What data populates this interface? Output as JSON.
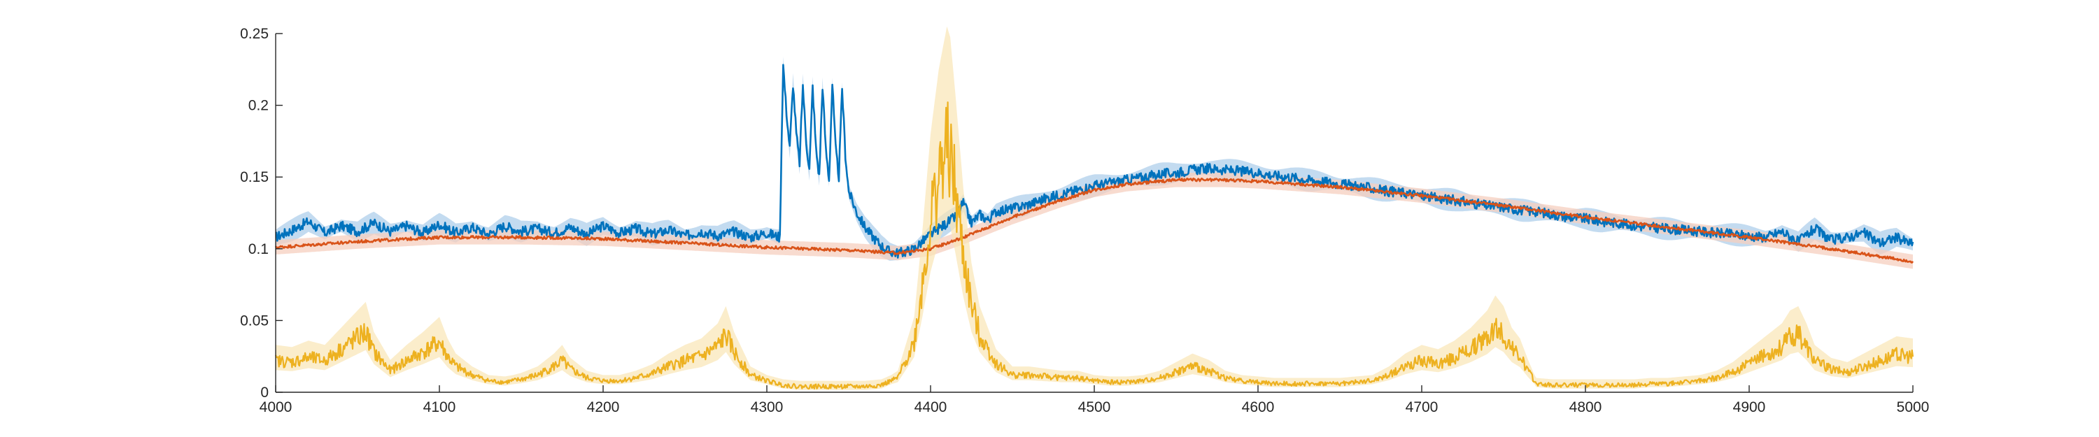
{
  "chart_data": {
    "type": "line",
    "title": "",
    "xlabel": "",
    "ylabel": "",
    "xlim": [
      4000,
      5000
    ],
    "ylim": [
      0,
      0.25
    ],
    "xticks": [
      "4000",
      "4100",
      "4200",
      "4300",
      "4400",
      "4500",
      "4600",
      "4700",
      "4800",
      "4900",
      "5000"
    ],
    "yticks": [
      "0",
      "0.05",
      "0.1",
      "0.15",
      "0.2",
      "0.25"
    ],
    "grid": false,
    "legend": "none",
    "series": [
      {
        "color": "#0072BD",
        "band_color": "#a9cce9",
        "x": [
          4000,
          4010,
          4020,
          4030,
          4040,
          4050,
          4060,
          4070,
          4080,
          4090,
          4100,
          4110,
          4120,
          4130,
          4140,
          4150,
          4160,
          4170,
          4180,
          4190,
          4200,
          4210,
          4220,
          4230,
          4240,
          4250,
          4260,
          4270,
          4280,
          4290,
          4300,
          4308,
          4309,
          4310,
          4312,
          4314,
          4316,
          4318,
          4320,
          4322,
          4324,
          4326,
          4328,
          4330,
          4332,
          4334,
          4336,
          4338,
          4340,
          4342,
          4344,
          4346,
          4348,
          4350,
          4355,
          4360,
          4365,
          4370,
          4375,
          4380,
          4385,
          4390,
          4395,
          4400,
          4405,
          4410,
          4415,
          4420,
          4425,
          4430,
          4435,
          4440,
          4450,
          4460,
          4470,
          4480,
          4490,
          4500,
          4510,
          4520,
          4530,
          4540,
          4550,
          4560,
          4570,
          4580,
          4590,
          4600,
          4610,
          4620,
          4630,
          4640,
          4650,
          4660,
          4670,
          4680,
          4690,
          4700,
          4710,
          4720,
          4730,
          4740,
          4750,
          4760,
          4770,
          4780,
          4790,
          4800,
          4810,
          4820,
          4830,
          4840,
          4850,
          4860,
          4870,
          4880,
          4890,
          4900,
          4910,
          4920,
          4930,
          4940,
          4950,
          4960,
          4970,
          4980,
          4990,
          5000
        ],
        "y": [
          0.108,
          0.113,
          0.119,
          0.111,
          0.116,
          0.112,
          0.118,
          0.112,
          0.116,
          0.111,
          0.117,
          0.111,
          0.115,
          0.11,
          0.116,
          0.112,
          0.114,
          0.111,
          0.115,
          0.11,
          0.116,
          0.111,
          0.114,
          0.11,
          0.113,
          0.109,
          0.112,
          0.109,
          0.112,
          0.108,
          0.111,
          0.108,
          0.175,
          0.228,
          0.195,
          0.17,
          0.215,
          0.18,
          0.16,
          0.214,
          0.175,
          0.155,
          0.213,
          0.17,
          0.15,
          0.214,
          0.17,
          0.148,
          0.215,
          0.17,
          0.15,
          0.212,
          0.165,
          0.14,
          0.125,
          0.115,
          0.108,
          0.102,
          0.098,
          0.097,
          0.098,
          0.1,
          0.105,
          0.11,
          0.114,
          0.118,
          0.122,
          0.132,
          0.118,
          0.124,
          0.12,
          0.126,
          0.128,
          0.131,
          0.135,
          0.138,
          0.141,
          0.144,
          0.146,
          0.148,
          0.15,
          0.152,
          0.153,
          0.155,
          0.156,
          0.155,
          0.154,
          0.153,
          0.151,
          0.15,
          0.148,
          0.147,
          0.145,
          0.144,
          0.142,
          0.14,
          0.139,
          0.137,
          0.135,
          0.134,
          0.132,
          0.13,
          0.129,
          0.127,
          0.126,
          0.124,
          0.122,
          0.121,
          0.119,
          0.118,
          0.116,
          0.115,
          0.114,
          0.113,
          0.112,
          0.111,
          0.11,
          0.109,
          0.108,
          0.112,
          0.105,
          0.114,
          0.106,
          0.108,
          0.111,
          0.104,
          0.108,
          0.103
        ]
      },
      {
        "color": "#D95319",
        "band_color": "#f5cfbf",
        "x": [
          4000,
          4050,
          4100,
          4150,
          4200,
          4250,
          4300,
          4350,
          4380,
          4400,
          4420,
          4450,
          4480,
          4500,
          4520,
          4550,
          4580,
          4600,
          4650,
          4700,
          4750,
          4800,
          4850,
          4900,
          4950,
          5000
        ],
        "y": [
          0.101,
          0.105,
          0.108,
          0.108,
          0.107,
          0.104,
          0.101,
          0.099,
          0.097,
          0.1,
          0.108,
          0.122,
          0.134,
          0.141,
          0.145,
          0.148,
          0.148,
          0.147,
          0.143,
          0.137,
          0.13,
          0.122,
          0.115,
          0.108,
          0.1,
          0.091
        ]
      },
      {
        "color": "#EDB120",
        "band_color": "#f9e6b5",
        "x": [
          4000,
          4010,
          4020,
          4030,
          4040,
          4050,
          4055,
          4060,
          4070,
          4080,
          4090,
          4100,
          4105,
          4110,
          4120,
          4130,
          4140,
          4150,
          4160,
          4170,
          4175,
          4180,
          4190,
          4200,
          4210,
          4220,
          4230,
          4240,
          4250,
          4260,
          4270,
          4275,
          4280,
          4290,
          4300,
          4310,
          4320,
          4330,
          4340,
          4350,
          4360,
          4370,
          4380,
          4390,
          4395,
          4400,
          4405,
          4410,
          4412,
          4415,
          4420,
          4425,
          4430,
          4440,
          4450,
          4460,
          4470,
          4480,
          4490,
          4500,
          4510,
          4520,
          4530,
          4540,
          4550,
          4560,
          4570,
          4580,
          4590,
          4600,
          4610,
          4620,
          4630,
          4640,
          4650,
          4660,
          4670,
          4680,
          4690,
          4700,
          4710,
          4720,
          4730,
          4740,
          4745,
          4750,
          4755,
          4760,
          4765,
          4770,
          4780,
          4790,
          4800,
          4810,
          4820,
          4830,
          4840,
          4850,
          4860,
          4870,
          4880,
          4890,
          4900,
          4910,
          4920,
          4925,
          4930,
          4935,
          4940,
          4950,
          4960,
          4970,
          4980,
          4990,
          5000
        ],
        "y": [
          0.022,
          0.021,
          0.024,
          0.022,
          0.03,
          0.038,
          0.042,
          0.028,
          0.015,
          0.022,
          0.028,
          0.035,
          0.025,
          0.018,
          0.012,
          0.008,
          0.007,
          0.009,
          0.012,
          0.018,
          0.022,
          0.016,
          0.01,
          0.008,
          0.008,
          0.01,
          0.013,
          0.018,
          0.022,
          0.025,
          0.032,
          0.04,
          0.028,
          0.012,
          0.008,
          0.005,
          0.004,
          0.004,
          0.004,
          0.004,
          0.004,
          0.005,
          0.01,
          0.035,
          0.075,
          0.12,
          0.15,
          0.17,
          0.165,
          0.14,
          0.095,
          0.06,
          0.04,
          0.02,
          0.012,
          0.012,
          0.011,
          0.01,
          0.01,
          0.008,
          0.007,
          0.007,
          0.008,
          0.01,
          0.014,
          0.018,
          0.015,
          0.01,
          0.008,
          0.007,
          0.006,
          0.006,
          0.006,
          0.006,
          0.006,
          0.007,
          0.008,
          0.012,
          0.018,
          0.022,
          0.02,
          0.024,
          0.03,
          0.038,
          0.045,
          0.04,
          0.03,
          0.025,
          0.015,
          0.006,
          0.005,
          0.005,
          0.005,
          0.005,
          0.005,
          0.005,
          0.006,
          0.006,
          0.007,
          0.008,
          0.01,
          0.014,
          0.02,
          0.026,
          0.032,
          0.038,
          0.04,
          0.032,
          0.022,
          0.016,
          0.014,
          0.018,
          0.022,
          0.026,
          0.025
        ]
      }
    ]
  }
}
